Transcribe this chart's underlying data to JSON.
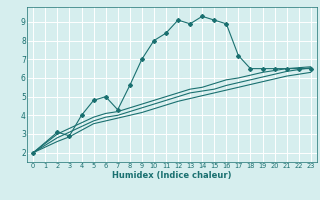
{
  "title": "",
  "xlabel": "Humidex (Indice chaleur)",
  "ylabel": "",
  "background_color": "#d6eeee",
  "grid_color": "#ffffff",
  "line_color": "#1a7070",
  "xlim": [
    -0.5,
    23.5
  ],
  "ylim": [
    1.5,
    9.8
  ],
  "xticks": [
    0,
    1,
    2,
    3,
    4,
    5,
    6,
    7,
    8,
    9,
    10,
    11,
    12,
    13,
    14,
    15,
    16,
    17,
    18,
    19,
    20,
    21,
    22,
    23
  ],
  "yticks": [
    2,
    3,
    4,
    5,
    6,
    7,
    8,
    9
  ],
  "series": [
    {
      "x": [
        0,
        2,
        3,
        4,
        5,
        6,
        7,
        8,
        9,
        10,
        11,
        12,
        13,
        14,
        15,
        16,
        17,
        18,
        19,
        20,
        21,
        22,
        23
      ],
      "y": [
        2.0,
        3.1,
        2.9,
        4.0,
        4.8,
        5.0,
        4.3,
        5.6,
        7.0,
        8.0,
        8.4,
        9.1,
        8.9,
        9.3,
        9.1,
        8.9,
        7.2,
        6.5,
        6.5,
        6.5,
        6.5,
        6.5,
        6.5
      ],
      "marker": true
    },
    {
      "x": [
        0,
        2,
        3,
        4,
        5,
        6,
        7,
        8,
        9,
        10,
        11,
        12,
        13,
        14,
        15,
        16,
        17,
        18,
        19,
        20,
        21,
        22,
        23
      ],
      "y": [
        2.0,
        3.0,
        3.3,
        3.6,
        3.9,
        4.1,
        4.2,
        4.4,
        4.6,
        4.8,
        5.0,
        5.2,
        5.4,
        5.5,
        5.7,
        5.9,
        6.0,
        6.15,
        6.3,
        6.4,
        6.5,
        6.55,
        6.6
      ],
      "marker": false
    },
    {
      "x": [
        0,
        2,
        3,
        4,
        5,
        6,
        7,
        8,
        9,
        10,
        11,
        12,
        13,
        14,
        15,
        16,
        17,
        18,
        19,
        20,
        21,
        22,
        23
      ],
      "y": [
        2.0,
        2.8,
        3.1,
        3.4,
        3.7,
        3.9,
        4.0,
        4.2,
        4.4,
        4.6,
        4.8,
        5.0,
        5.2,
        5.3,
        5.4,
        5.6,
        5.75,
        5.9,
        6.05,
        6.2,
        6.35,
        6.45,
        6.55
      ],
      "marker": false
    },
    {
      "x": [
        0,
        2,
        3,
        4,
        5,
        6,
        7,
        8,
        9,
        10,
        11,
        12,
        13,
        14,
        15,
        16,
        17,
        18,
        19,
        20,
        21,
        22,
        23
      ],
      "y": [
        2.0,
        2.6,
        2.85,
        3.2,
        3.55,
        3.7,
        3.85,
        4.0,
        4.15,
        4.35,
        4.55,
        4.75,
        4.9,
        5.05,
        5.2,
        5.35,
        5.5,
        5.65,
        5.8,
        5.95,
        6.1,
        6.2,
        6.3
      ],
      "marker": false
    }
  ]
}
